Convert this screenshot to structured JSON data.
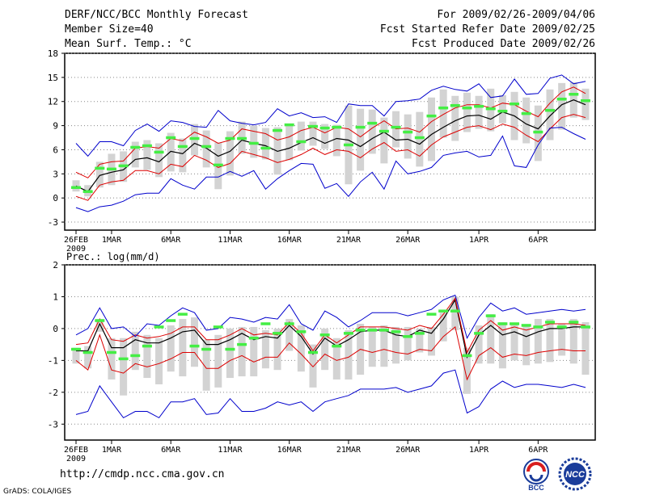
{
  "header": {
    "title": "DERF/NCC/BCC Monthly Forecast",
    "member_size": "Member Size=40",
    "variable": "Mean Surf. Temp.: °C",
    "period": "For 2009/02/26-2009/04/06",
    "start_date": "Fcst Started Refer Date 2009/02/25",
    "produced_date": "Fcst Produced Date 2009/02/26"
  },
  "footer": {
    "url": "http://cmdp.ncc.cma.gov.cn",
    "software": "GrADS: COLA/IGES",
    "logo_bcc_text": "BCC",
    "logo_ncc_text": "NCC"
  },
  "colors": {
    "mean": "#000000",
    "spread": "#dd0000",
    "envelope": "#0000cc",
    "box": "#d3d3d3",
    "median": "#44ee44",
    "grid": "#888888"
  },
  "chart_data": [
    {
      "type": "line",
      "title": "Mean Surf. Temp.: °C",
      "xlabels": [
        "26FEB",
        "1MAR",
        "6MAR",
        "11MAR",
        "16MAR",
        "21MAR",
        "26MAR",
        "1APR",
        "6APR"
      ],
      "xlabel_year": "2009",
      "ylim": [
        -4,
        18
      ],
      "yticks": [
        -3,
        0,
        3,
        6,
        9,
        12,
        15,
        18
      ],
      "series": [
        {
          "name": "ensemble mean",
          "values": [
            1.5,
            0.8,
            2.8,
            3.2,
            3.5,
            4.8,
            5,
            4.5,
            5.8,
            5.5,
            6.8,
            6.2,
            5.2,
            5.8,
            7.2,
            6.8,
            6.5,
            5.8,
            6.2,
            6.9,
            7.5,
            6.8,
            7.4,
            7.2,
            6.4,
            7.4,
            8.2,
            7.2,
            7.3,
            6.7,
            7.9,
            8.8,
            9.6,
            10.2,
            10.3,
            9.8,
            10.7,
            10.2,
            9.2,
            8.6,
            10.2,
            11.6,
            12.2,
            11.6
          ]
        },
        {
          "name": "mean + std",
          "values": [
            3.2,
            2.5,
            4.2,
            4.5,
            4.6,
            6.2,
            6.4,
            6.2,
            7.4,
            7.1,
            8.2,
            7.6,
            6.8,
            7.2,
            8.6,
            8.3,
            8.0,
            7.2,
            7.6,
            8.4,
            8.8,
            8.1,
            8.8,
            8.6,
            7.6,
            8.7,
            9.6,
            8.6,
            8.7,
            8.2,
            9.5,
            10.4,
            11.2,
            11.6,
            11.6,
            11.2,
            11.8,
            11.6,
            10.8,
            10.1,
            11.8,
            13.2,
            13.8,
            13.0
          ]
        },
        {
          "name": "mean - std",
          "values": [
            0.2,
            -0.3,
            1.6,
            2.0,
            2.2,
            3.4,
            3.4,
            3.0,
            4.2,
            3.9,
            5.3,
            4.7,
            3.8,
            4.3,
            5.8,
            5.4,
            5.0,
            4.4,
            4.8,
            5.4,
            6.2,
            5.4,
            6.0,
            5.8,
            5.0,
            6.1,
            6.9,
            5.8,
            6.0,
            5.2,
            6.6,
            7.6,
            8.2,
            8.8,
            9.0,
            8.5,
            9.2,
            8.8,
            7.8,
            7.0,
            8.6,
            10.0,
            10.4,
            10.0
          ]
        },
        {
          "name": "maximum",
          "values": [
            6.8,
            5.2,
            7.0,
            7.0,
            6.5,
            8.4,
            9.2,
            8.3,
            9.6,
            9.4,
            8.9,
            8.8,
            10.9,
            9.6,
            9.3,
            9.1,
            9.4,
            11.1,
            10.2,
            10.6,
            10.0,
            10.1,
            9.4,
            11.7,
            11.5,
            11.5,
            10.2,
            12.0,
            12.1,
            12.3,
            13.4,
            13.9,
            13.5,
            13.3,
            14.2,
            12.5,
            12.7,
            14.8,
            12.9,
            13.0,
            14.9,
            15.3,
            14.2,
            14.5
          ]
        },
        {
          "name": "minimum",
          "values": [
            -1.2,
            -1.7,
            -1.1,
            -0.9,
            -0.4,
            0.4,
            0.6,
            0.6,
            2.4,
            1.6,
            1.1,
            2.6,
            2.6,
            3.3,
            2.7,
            3.4,
            1.1,
            2.4,
            3.4,
            4.3,
            4.2,
            1.2,
            1.8,
            0.2,
            2.0,
            3.2,
            1.1,
            4.6,
            3.0,
            3.3,
            3.8,
            5.3,
            5.6,
            5.8,
            5.1,
            5.3,
            7.7,
            4.0,
            3.8,
            6.6,
            8.7,
            8.8,
            8.0,
            7.3
          ]
        }
      ],
      "boxes": {
        "high": [
          2.2,
          1.6,
          4.5,
          5.5,
          5.8,
          7.0,
          7.2,
          6.8,
          8.1,
          7.4,
          9.2,
          8.4,
          6.9,
          8.3,
          9.5,
          9.0,
          8.7,
          8.8,
          9.1,
          9.5,
          9.5,
          9.2,
          9.1,
          11.5,
          11.1,
          11.0,
          10.0,
          10.8,
          10.4,
          10.7,
          12.5,
          13.5,
          12.7,
          13.1,
          12.7,
          13.6,
          12.8,
          13.2,
          12.5,
          11.5,
          13.5,
          14.3,
          14.4,
          13.6
        ],
        "low": [
          0.8,
          0.2,
          1.3,
          1.6,
          2.0,
          3.8,
          3.5,
          2.6,
          3.3,
          3.2,
          5.3,
          3.8,
          1.1,
          2.8,
          5.5,
          5.0,
          4.8,
          2.9,
          4.7,
          5.9,
          6.5,
          6.1,
          5.2,
          1.7,
          3.4,
          5.5,
          4.3,
          6.3,
          4.9,
          3.9,
          4.6,
          7.5,
          7.1,
          8.2,
          8.6,
          8.3,
          9.3,
          7.2,
          6.8,
          4.6,
          7.2,
          8.5,
          10.0,
          9.7
        ],
        "median": [
          1.3,
          0.8,
          3.7,
          3.6,
          4.0,
          6.3,
          6.5,
          5.7,
          7.5,
          6.4,
          7.4,
          6.4,
          4.1,
          7.4,
          7.4,
          6.8,
          6.2,
          8.4,
          9.1,
          7.0,
          8.9,
          8.7,
          8.8,
          6.6,
          8.8,
          9.3,
          8.3,
          8.8,
          8.2,
          7.5,
          10.2,
          11.2,
          11.5,
          11.2,
          11.4,
          11.1,
          10.8,
          11.7,
          10.5,
          8.2,
          10.9,
          12.3,
          12.9,
          12.1
        ]
      }
    },
    {
      "type": "line",
      "title": "Prec.: log(mm/d)",
      "xlabels": [
        "26FEB",
        "1MAR",
        "6MAR",
        "11MAR",
        "16MAR",
        "21MAR",
        "26MAR",
        "1APR",
        "6APR"
      ],
      "xlabel_year": "2009",
      "ylim": [
        -3.5,
        2
      ],
      "yticks": [
        -3,
        -2,
        -1,
        0,
        1,
        2
      ],
      "series": [
        {
          "name": "ensemble mean",
          "values": [
            -0.7,
            -0.7,
            0.15,
            -0.6,
            -0.6,
            -0.35,
            -0.45,
            -0.45,
            -0.3,
            -0.1,
            -0.05,
            -0.5,
            -0.5,
            -0.35,
            -0.15,
            -0.35,
            -0.25,
            -0.3,
            0.1,
            -0.25,
            -0.8,
            -0.3,
            -0.55,
            -0.35,
            -0.1,
            -0.05,
            -0.05,
            -0.2,
            -0.25,
            -0.05,
            -0.15,
            0.3,
            0.9,
            -0.9,
            -0.2,
            0.1,
            -0.2,
            -0.1,
            -0.25,
            -0.1,
            0,
            0,
            0.05,
            0.05
          ]
        },
        {
          "name": "mean + std",
          "values": [
            -0.5,
            -0.45,
            0.3,
            -0.35,
            -0.4,
            -0.2,
            -0.3,
            -0.25,
            -0.15,
            0.05,
            0.05,
            -0.35,
            -0.35,
            -0.2,
            0,
            -0.2,
            -0.15,
            -0.2,
            0.2,
            -0.15,
            -0.7,
            -0.2,
            -0.45,
            -0.2,
            0.05,
            0.05,
            0.05,
            0,
            -0.05,
            0.1,
            0,
            0.45,
            0.95,
            -0.75,
            -0.05,
            0.25,
            -0.05,
            0.05,
            -0.05,
            0.05,
            0.15,
            0.15,
            0.15,
            0.1
          ]
        },
        {
          "name": "mean - std",
          "values": [
            -1.0,
            -1.3,
            -0.2,
            -1.3,
            -1.4,
            -1.1,
            -1.2,
            -1.1,
            -0.95,
            -0.75,
            -0.75,
            -1.25,
            -1.25,
            -1.0,
            -0.85,
            -1.05,
            -0.9,
            -0.9,
            -0.45,
            -0.8,
            -1.2,
            -0.8,
            -1.0,
            -0.9,
            -0.65,
            -0.75,
            -0.65,
            -0.75,
            -0.8,
            -0.65,
            -0.7,
            -0.25,
            0.05,
            -1.6,
            -0.85,
            -0.6,
            -0.9,
            -0.8,
            -0.85,
            -0.75,
            -0.7,
            -0.65,
            -0.7,
            -0.7
          ]
        },
        {
          "name": "maximum",
          "values": [
            -0.2,
            0,
            0.65,
            0,
            0.05,
            -0.25,
            0.15,
            0.1,
            0.4,
            0.65,
            0.5,
            -0.05,
            0,
            0.35,
            0.3,
            0.2,
            0.35,
            0.3,
            0.75,
            0.15,
            -0.05,
            0.55,
            0.35,
            0.05,
            0.25,
            0.5,
            0.5,
            0.5,
            0.4,
            0.5,
            0.6,
            0.9,
            1.05,
            -0.3,
            0.35,
            0.8,
            0.55,
            0.65,
            0.45,
            0.5,
            0.55,
            0.6,
            0.55,
            0.6
          ]
        },
        {
          "name": "minimum",
          "values": [
            -2.7,
            -2.6,
            -1.8,
            -2.3,
            -2.8,
            -2.6,
            -2.6,
            -2.8,
            -2.3,
            -2.3,
            -2.2,
            -2.7,
            -2.65,
            -2.2,
            -2.6,
            -2.6,
            -2.5,
            -2.3,
            -2.4,
            -2.3,
            -2.6,
            -2.3,
            -2.2,
            -2.1,
            -1.9,
            -1.9,
            -1.9,
            -1.85,
            -2.0,
            -1.9,
            -1.8,
            -1.4,
            -1.3,
            -2.65,
            -2.45,
            -1.9,
            -1.65,
            -1.85,
            -1.75,
            -1.75,
            -1.8,
            -1.85,
            -1.75,
            -1.85
          ]
        }
      ],
      "boxes": {
        "high": [
          -0.6,
          -0.55,
          0.3,
          -0.3,
          -0.3,
          -0.1,
          -0.2,
          -0.3,
          0.1,
          0.3,
          0.35,
          -0.35,
          -0.2,
          0,
          0.05,
          0.05,
          -0.05,
          0,
          0.3,
          0.1,
          -0.5,
          0,
          -0.3,
          -0.05,
          0.15,
          0.05,
          0.1,
          0.05,
          0.05,
          0,
          0.05,
          0.5,
          1.0,
          -0.6,
          0.1,
          0.45,
          0.2,
          0.15,
          0.1,
          0.3,
          0.3,
          0.15,
          0.3,
          0.2
        ],
        "low": [
          -1.1,
          -1.25,
          -0.1,
          -1.6,
          -2.1,
          -1.3,
          -1.55,
          -1.75,
          -1.35,
          -1.5,
          -1.2,
          -1.95,
          -1.85,
          -1.55,
          -1.5,
          -1.5,
          -1.25,
          -1.3,
          -0.7,
          -1.35,
          -1.85,
          -1.3,
          -1.6,
          -1.6,
          -1.45,
          -1.2,
          -1.2,
          -1.1,
          -1.0,
          -0.75,
          -0.85,
          -0.4,
          -0.05,
          -2.05,
          -1.1,
          -1.1,
          -1.25,
          -1.0,
          -1.15,
          -1.1,
          -1.05,
          -0.85,
          -1.1,
          -1.45
        ],
        "median": [
          -0.65,
          -0.75,
          0.25,
          -0.75,
          -0.95,
          -0.85,
          -0.55,
          0.05,
          0.25,
          0.45,
          -0.55,
          -0.65,
          0.05,
          -0.65,
          -0.5,
          -0.3,
          0.15,
          -0.15,
          0.15,
          -0.1,
          -0.75,
          -0.2,
          -0.55,
          -0.15,
          -0.05,
          -0.05,
          -0.05,
          -0.1,
          -0.25,
          -0.15,
          0.45,
          0.55,
          0.55,
          -0.85,
          -0.15,
          0.4,
          0.15,
          0.15,
          0.1,
          0.05,
          0.2,
          0.05,
          0.2,
          0.05
        ]
      }
    }
  ]
}
